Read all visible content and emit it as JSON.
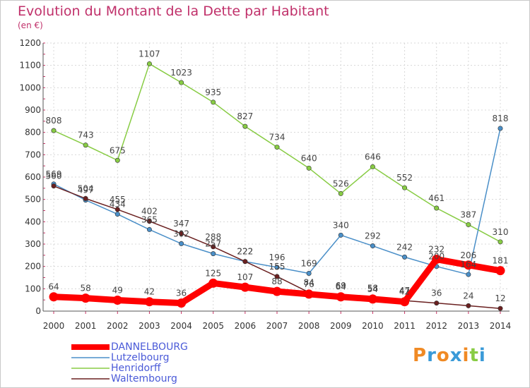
{
  "chart_data": {
    "type": "line",
    "title": "Evolution du Montant de la Dette par Habitant",
    "subtitle": "(en €)",
    "x": [
      "2000",
      "2001",
      "2002",
      "2003",
      "2004",
      "2005",
      "2006",
      "2007",
      "2008",
      "2009",
      "2010",
      "2011",
      "2012",
      "2013",
      "2014"
    ],
    "ylim": [
      0,
      1200
    ],
    "yticks": [
      0,
      100,
      200,
      300,
      400,
      500,
      600,
      700,
      800,
      900,
      1000,
      1100,
      1200
    ],
    "grid": true,
    "legend_placement": "bottom-left",
    "series": [
      {
        "name": "DANNELBOURG",
        "color": "#ff0000",
        "values": [
          64,
          58,
          49,
          42,
          36,
          125,
          107,
          88,
          76,
          64,
          54,
          42,
          232,
          206,
          181
        ],
        "labels": [
          "64",
          "58",
          "49",
          "42",
          "36",
          "125",
          "107",
          "88",
          "76",
          "64",
          "54",
          "42",
          "232",
          "206",
          "181"
        ]
      },
      {
        "name": "Lutzelbourg",
        "color": "#4a8fc8",
        "values": [
          569,
          497,
          434,
          365,
          302,
          257,
          222,
          196,
          169,
          340,
          292,
          242,
          200,
          164,
          818
        ],
        "labels": [
          "569",
          "497",
          "434",
          "365",
          "302",
          "257",
          "222",
          "196",
          "169",
          "340",
          "292",
          "242",
          "200",
          "164",
          "818"
        ]
      },
      {
        "name": "Henridorff",
        "color": "#88cc44",
        "values": [
          808,
          743,
          675,
          1107,
          1023,
          935,
          827,
          734,
          640,
          526,
          646,
          552,
          461,
          387,
          310
        ],
        "labels": [
          "808",
          "743",
          "675",
          "1107",
          "1023",
          "935",
          "827",
          "734",
          "640",
          "526",
          "646",
          "552",
          "461",
          "387",
          "310"
        ]
      },
      {
        "name": "Waltembourg",
        "color": "#6a2020",
        "values": [
          560,
          504,
          455,
          402,
          347,
          288,
          222,
          155,
          84,
          69,
          58,
          47,
          36,
          24,
          12
        ],
        "labels": [
          "560",
          "504",
          "455",
          "402",
          "347",
          "288",
          "222",
          "155",
          "84",
          "69",
          "58",
          "47",
          "36",
          "24",
          "12"
        ]
      }
    ]
  },
  "branding": {
    "logo_text": "Proxiti",
    "logo_colors": [
      "#f08a24",
      "#3a9ad8",
      "#f08a24",
      "#3a9ad8",
      "#f08a24",
      "#88cc44",
      "#3a9ad8"
    ]
  }
}
